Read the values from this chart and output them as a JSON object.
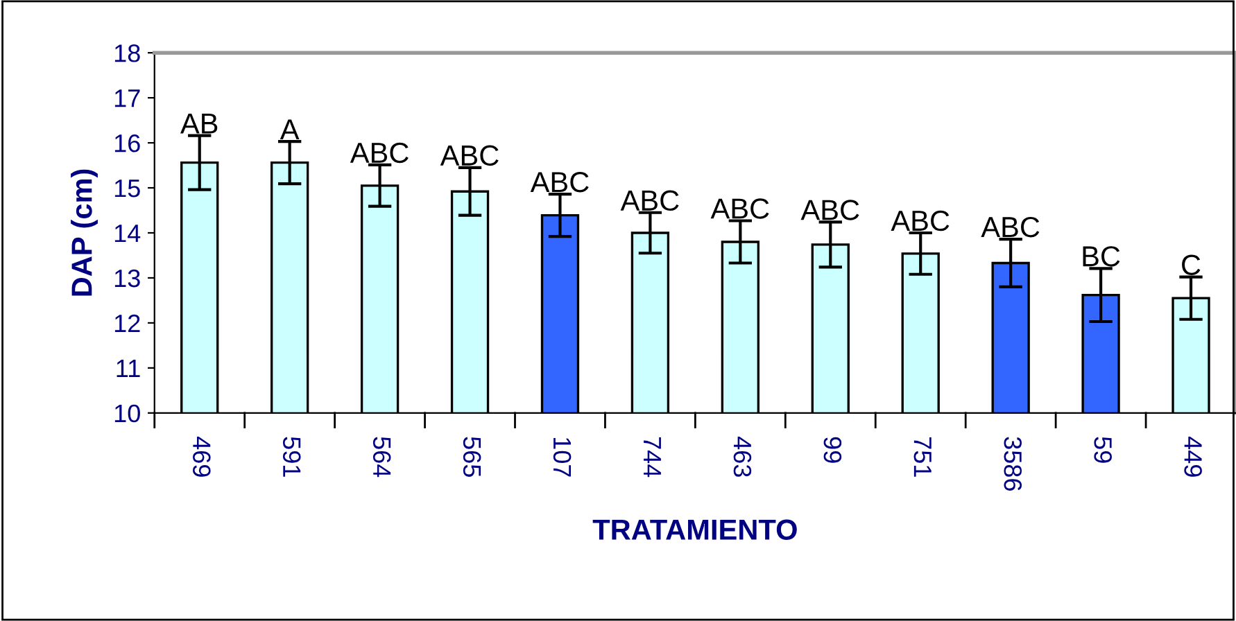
{
  "chart_data": {
    "type": "bar",
    "xlabel": "TRATAMIENTO",
    "ylabel": "DAP (cm)",
    "categories": [
      "469",
      "591",
      "564",
      "565",
      "107",
      "744",
      "463",
      "99",
      "751",
      "3586",
      "59",
      "449"
    ],
    "values": [
      15.56,
      15.56,
      15.05,
      14.92,
      14.39,
      14.0,
      13.8,
      13.74,
      13.54,
      13.33,
      12.62,
      12.55
    ],
    "colors": [
      "#ccffff",
      "#ccffff",
      "#ccffff",
      "#ccffff",
      "#3366ff",
      "#ccffff",
      "#ccffff",
      "#ccffff",
      "#ccffff",
      "#3366ff",
      "#3366ff",
      "#ccffff"
    ],
    "errors": [
      0.6,
      0.47,
      0.46,
      0.53,
      0.47,
      0.45,
      0.47,
      0.5,
      0.46,
      0.53,
      0.59,
      0.47
    ],
    "ylim": [
      10,
      18
    ],
    "yticks": [
      10,
      11,
      12,
      13,
      14,
      15,
      16,
      17,
      18
    ],
    "grid": false,
    "legend": false,
    "annotations": [
      {
        "text": "AB",
        "x": "469",
        "y": 15.56
      },
      {
        "text": "A",
        "x": "591",
        "y": 15.56
      },
      {
        "text": "ABC",
        "x": "564",
        "y": 15.05
      },
      {
        "text": "ABC",
        "x": "565",
        "y": 14.92
      },
      {
        "text": "ABC",
        "x": "107",
        "y": 14.39
      },
      {
        "text": "ABC",
        "x": "744",
        "y": 14.0
      },
      {
        "text": "ABC",
        "x": "463",
        "y": 13.8
      },
      {
        "text": "ABC",
        "x": "99",
        "y": 13.74
      },
      {
        "text": "ABC",
        "x": "751",
        "y": 13.54
      },
      {
        "text": "ABC",
        "x": "3586",
        "y": 13.33
      },
      {
        "text": "BC",
        "x": "59",
        "y": 12.62
      },
      {
        "text": "C",
        "x": "449",
        "y": 12.55
      }
    ]
  }
}
